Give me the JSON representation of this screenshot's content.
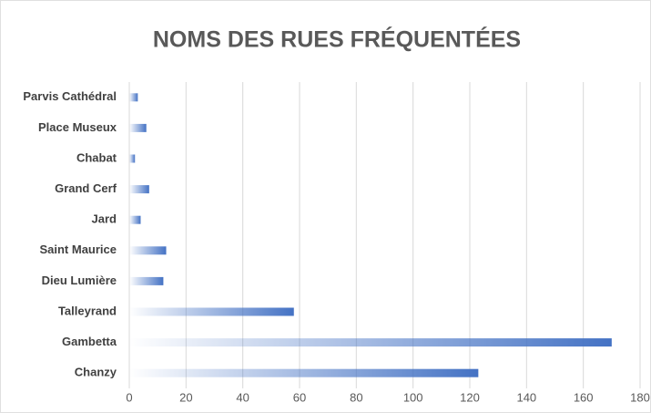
{
  "chart_data": {
    "type": "bar",
    "orientation": "horizontal",
    "title": "NOMS DES RUES FRÉQUENTÉES",
    "categories": [
      "Parvis Cathédral",
      "Place Museux",
      "Chabat",
      "Grand Cerf",
      "Jard",
      "Saint Maurice",
      "Dieu Lumière",
      "Talleyrand",
      "Gambetta",
      "Chanzy"
    ],
    "values": [
      3,
      6,
      2,
      7,
      4,
      13,
      12,
      58,
      170,
      123
    ],
    "color": "#4472c4",
    "gradient": true,
    "xlim": [
      0,
      180
    ],
    "xticks": [
      0,
      20,
      40,
      60,
      80,
      100,
      120,
      140,
      160,
      180
    ],
    "grid": true
  }
}
